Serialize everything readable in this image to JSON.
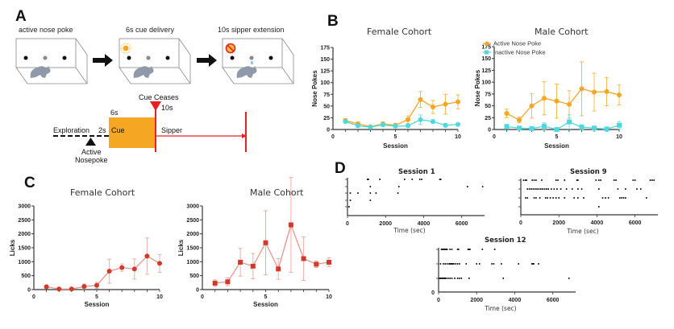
{
  "figure": {
    "panels": {
      "A": {
        "letter": "A",
        "boxes": [
          {
            "label": "active nose poke",
            "cue_icon": "none"
          },
          {
            "label": "6s cue delivery",
            "cue_icon": "sun-icon"
          },
          {
            "label": "10s sipper extension",
            "cue_icon": "no-symbol-icon"
          }
        ],
        "timeline": {
          "cue_ceases": "Cue Ceases",
          "sipper_duration": "10s",
          "cue_duration": "6s",
          "exploration": "Exploration",
          "delay": "2s",
          "cue": "Cue",
          "sipper": "Sipper",
          "active_line1": "Active",
          "active_line2": "Nosepoke"
        },
        "colors": {
          "cue": "#f5a623",
          "sipper": "#e8201f",
          "mouse": "#8e9aaa"
        }
      },
      "B": {
        "letter": "B"
      },
      "C": {
        "letter": "C"
      },
      "D": {
        "letter": "D"
      }
    }
  },
  "chart_data": [
    {
      "id": "B-female",
      "type": "line",
      "title": "Female Cohort",
      "xlabel": "Session",
      "ylabel": "Nose Pokes",
      "xlim": [
        0,
        10
      ],
      "ylim": [
        0,
        175
      ],
      "xticks": [
        0,
        5,
        10
      ],
      "yticks": [
        0,
        25,
        50,
        75,
        100,
        125,
        150,
        175
      ],
      "grid": false,
      "x": [
        1,
        2,
        3,
        4,
        5,
        6,
        7,
        8,
        9,
        10
      ],
      "series": [
        {
          "name": "Active Nose Poke",
          "color": "#f5a623",
          "marker": "circle",
          "values": [
            19,
            12,
            6,
            12,
            9,
            21,
            64,
            48,
            54,
            59
          ],
          "err": [
            4,
            4,
            2,
            4,
            4,
            8,
            17,
            14,
            21,
            15
          ]
        },
        {
          "name": "Inactive Nose Poke",
          "color": "#4dd9e0",
          "marker": "circle",
          "values": [
            17,
            8,
            5,
            10,
            7,
            8,
            21,
            17,
            9,
            11
          ],
          "err": [
            3,
            3,
            2,
            3,
            3,
            2,
            10,
            4,
            4,
            2
          ]
        }
      ]
    },
    {
      "id": "B-male",
      "type": "line",
      "title": "Male Cohort",
      "xlabel": "Session",
      "ylabel": "Nose Pokes",
      "xlim": [
        0,
        10
      ],
      "ylim": [
        0,
        175
      ],
      "xticks": [
        0,
        5,
        10
      ],
      "yticks": [
        0,
        25,
        50,
        75,
        100,
        125,
        150,
        175
      ],
      "grid": false,
      "legend": {
        "placement": "top-right",
        "entries": [
          "Active Nose Poke",
          "Inactive Nose Poke"
        ]
      },
      "x": [
        1,
        2,
        3,
        4,
        5,
        6,
        7,
        8,
        9,
        10
      ],
      "series": [
        {
          "name": "Active Nose Poke",
          "color": "#f5a623",
          "marker": "circle",
          "values": [
            34,
            20,
            50,
            66,
            60,
            53,
            86,
            79,
            80,
            73
          ],
          "err": [
            9,
            6,
            26,
            35,
            36,
            29,
            57,
            40,
            30,
            21
          ]
        },
        {
          "name": "Inactive Nose Poke",
          "color": "#4dd9e0",
          "marker": "square",
          "values": [
            6,
            3,
            2,
            7,
            0,
            16,
            5,
            3,
            1,
            9
          ],
          "err": [
            5,
            2,
            2,
            7,
            1,
            15,
            5,
            2,
            1,
            8
          ]
        }
      ]
    },
    {
      "id": "C-female",
      "type": "line",
      "title": "Female Cohort",
      "xlabel": "Session",
      "ylabel": "Licks",
      "xlim": [
        0,
        10
      ],
      "ylim": [
        0,
        3000
      ],
      "xticks": [
        0,
        5,
        10
      ],
      "yticks": [
        0,
        500,
        1000,
        1500,
        2000,
        2500,
        3000
      ],
      "grid": false,
      "x": [
        1,
        2,
        3,
        4,
        5,
        6,
        7,
        8,
        9,
        10
      ],
      "series": [
        {
          "name": "Licks",
          "color": "#d0392b",
          "line_color": "#e8968c",
          "marker": "circle",
          "values": [
            100,
            20,
            20,
            110,
            150,
            660,
            790,
            740,
            1200,
            940
          ],
          "err": [
            60,
            10,
            10,
            90,
            110,
            430,
            130,
            360,
            650,
            320
          ]
        }
      ]
    },
    {
      "id": "C-male",
      "type": "line",
      "title": "Male Cohort",
      "xlabel": "Session",
      "ylabel": "Licks",
      "xlim": [
        0,
        10
      ],
      "ylim": [
        0,
        3000
      ],
      "xticks": [
        0,
        5,
        10
      ],
      "yticks": [
        0,
        500,
        1000,
        1500,
        2000,
        2500,
        3000
      ],
      "grid": false,
      "x": [
        1,
        2,
        3,
        4,
        5,
        6,
        7,
        8,
        9,
        10
      ],
      "series": [
        {
          "name": "Licks",
          "color": "#d0392b",
          "line_color": "#e8968c",
          "marker": "square",
          "values": [
            230,
            280,
            980,
            840,
            1680,
            740,
            2320,
            1110,
            910,
            980
          ],
          "err": [
            120,
            140,
            500,
            450,
            1150,
            370,
            1700,
            780,
            120,
            160
          ]
        }
      ]
    },
    {
      "id": "D-session1",
      "type": "scatter",
      "title": "Session 1",
      "xlabel": "Time (sec)",
      "xlim": [
        0,
        7200
      ],
      "xticks": [
        0,
        2000,
        4000,
        6000
      ],
      "rows": 5,
      "events": [
        [
          1050,
          1100,
          1700,
          3000,
          3400,
          3800,
          3900,
          4850,
          4900
        ],
        [
          1200,
          2700,
          6300,
          7100
        ],
        [
          150,
          550,
          1200,
          1500,
          2650
        ],
        [
          150,
          1200
        ],
        [
          80
        ]
      ]
    },
    {
      "id": "D-session9",
      "type": "scatter",
      "title": "Session 9",
      "xlabel": "Time (sec)",
      "xlim": [
        0,
        7200
      ],
      "xticks": [
        0,
        2000,
        4000,
        6000
      ],
      "rows": 4,
      "events": [
        [
          150,
          250,
          300,
          600,
          700,
          800,
          1100,
          1850,
          1950,
          2300,
          2950,
          3000,
          3950,
          4100,
          4200,
          4900,
          5000,
          5900,
          6000,
          6800,
          6900,
          7000
        ],
        [
          350,
          450,
          550,
          650,
          750,
          850,
          950,
          1050,
          1150,
          1250,
          1350,
          1450,
          1600,
          1750,
          1900,
          2100,
          2400,
          2700,
          3000,
          3200,
          4100,
          5100,
          5500,
          6100,
          6300
        ],
        [
          250,
          350,
          700,
          800,
          1000,
          1300,
          1400,
          1550,
          1700,
          1850,
          2000,
          2300,
          2800,
          3000,
          3300,
          4300,
          4450,
          4600,
          5200,
          5300,
          5400,
          5500,
          6600
        ],
        [
          4100
        ]
      ]
    },
    {
      "id": "D-session12",
      "type": "scatter",
      "title": "Session 12",
      "xlabel": "Time (sec)",
      "xlim": [
        0,
        7200
      ],
      "xticks": [
        0,
        2000,
        4000,
        6000
      ],
      "yticks": [
        0
      ],
      "rows": 3,
      "events": [
        [
          150,
          200,
          250,
          300,
          350,
          400,
          450,
          600,
          700,
          1000,
          1050,
          1550,
          1600,
          1650,
          2300,
          2950
        ],
        [
          100,
          250,
          350,
          450,
          550,
          600,
          650,
          700,
          750,
          800,
          900,
          1000,
          1100,
          1450,
          2000,
          2150,
          2800,
          2900,
          3300,
          4200,
          4900,
          4950,
          5000,
          5250
        ],
        [
          50,
          100,
          150,
          200,
          250,
          300,
          350,
          400,
          500,
          600,
          700,
          850,
          1000,
          1100,
          1200,
          1600,
          3400,
          6850
        ]
      ]
    }
  ]
}
